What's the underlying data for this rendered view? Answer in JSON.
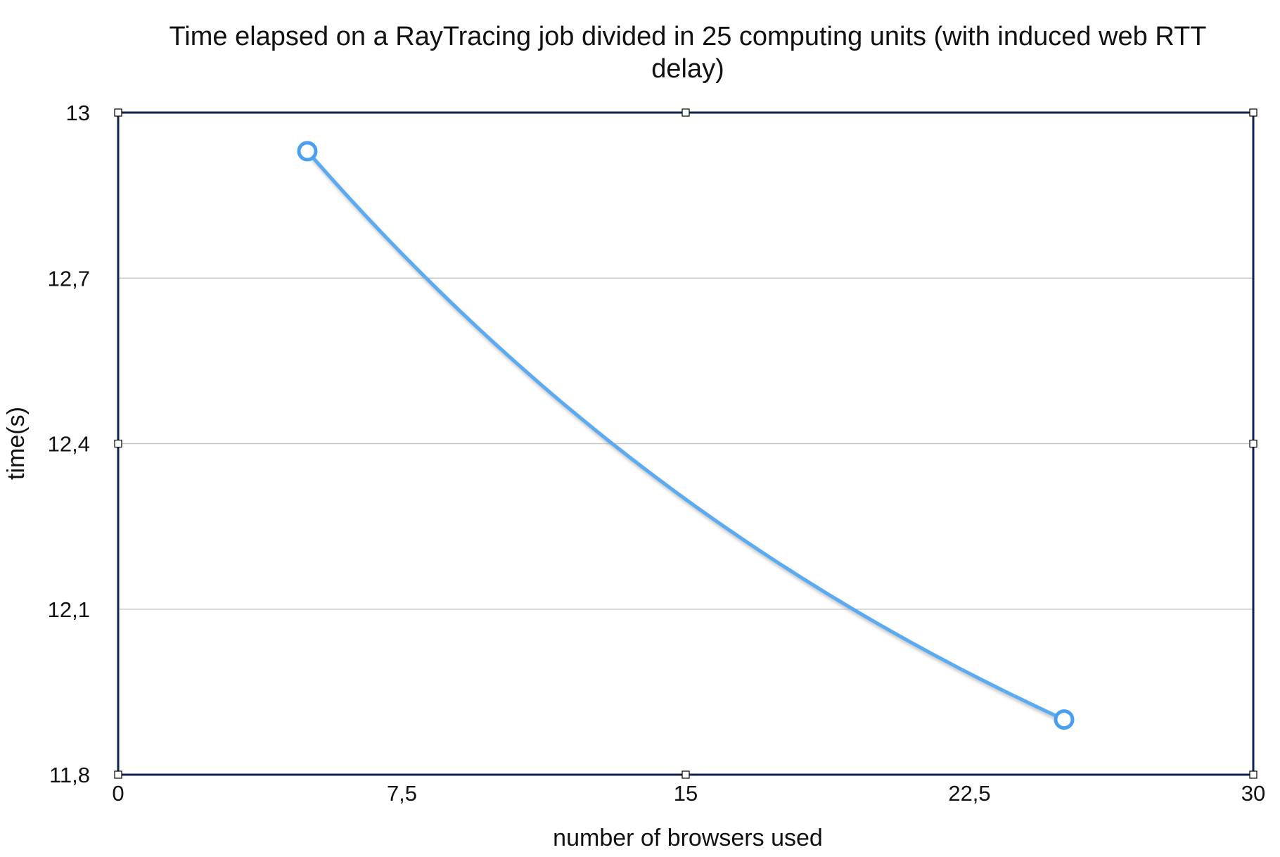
{
  "chart_data": {
    "type": "line",
    "title_line1": "Time elapsed on a RayTracing job divided in 25 computing units (with induced web RTT",
    "title_line2": "delay)",
    "xlabel": "number of browsers used",
    "ylabel": "time(s)",
    "xlim": [
      0,
      30
    ],
    "ylim": [
      11.8,
      13
    ],
    "x_ticks": [
      0,
      7.5,
      15,
      22.5,
      30
    ],
    "x_tick_labels": [
      "0",
      "7,5",
      "15",
      "22,5",
      "30"
    ],
    "y_ticks": [
      11.8,
      12.1,
      12.4,
      12.7,
      13
    ],
    "y_tick_labels": [
      "11,8",
      "12,1",
      "12,4",
      "12,7",
      "13"
    ],
    "grid": "horizontal",
    "smooth": true,
    "series": [
      {
        "x": [
          5,
          25
        ],
        "y": [
          12.93,
          11.9
        ]
      }
    ],
    "colors": {
      "line": "#5aabf2",
      "marker": "#4a9ff0",
      "shadow": "#8a8a8a",
      "frame": "#0f2250",
      "grid": "#c8c8c8"
    }
  }
}
